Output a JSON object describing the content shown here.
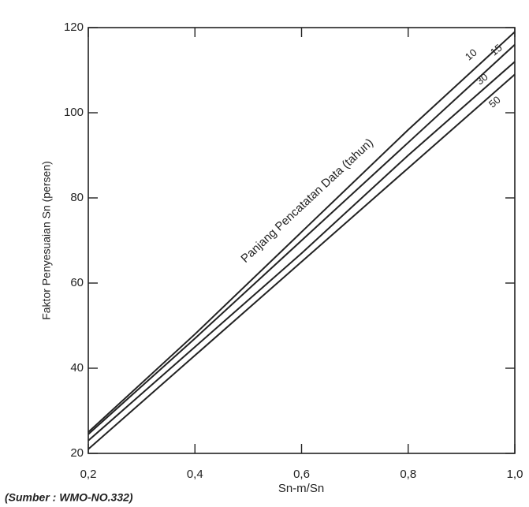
{
  "chart_data": {
    "type": "line",
    "x_label": "Sn-m/Sn",
    "y_label": "Faktor Penyesuaian Sn (persen)",
    "annotation": "Panjang Pencatatan Data (tahun)",
    "source": "(Sumber : WMO-NO.332)",
    "x": [
      0.2,
      0.4,
      0.6,
      0.8,
      1.0
    ],
    "series": [
      {
        "name": "10",
        "color": "#222222",
        "values": [
          25,
          48,
          72,
          96,
          119
        ]
      },
      {
        "name": "15",
        "color": "#222222",
        "values": [
          24.5,
          47,
          70,
          93,
          116
        ]
      },
      {
        "name": "30",
        "color": "#222222",
        "values": [
          23,
          45,
          67,
          90,
          112
        ]
      },
      {
        "name": "50",
        "color": "#222222",
        "values": [
          21,
          43,
          65,
          87,
          109
        ]
      }
    ],
    "xlim": [
      0.2,
      1.0
    ],
    "xticks": [
      {
        "value": 0.2,
        "label": "0,2"
      },
      {
        "value": 0.4,
        "label": "0,4"
      },
      {
        "value": 0.6,
        "label": "0,6"
      },
      {
        "value": 0.8,
        "label": "0,8"
      },
      {
        "value": 1.0,
        "label": "1,0"
      }
    ],
    "ylim": [
      20,
      120
    ],
    "yticks": [
      20,
      40,
      60,
      80,
      100,
      120
    ]
  }
}
